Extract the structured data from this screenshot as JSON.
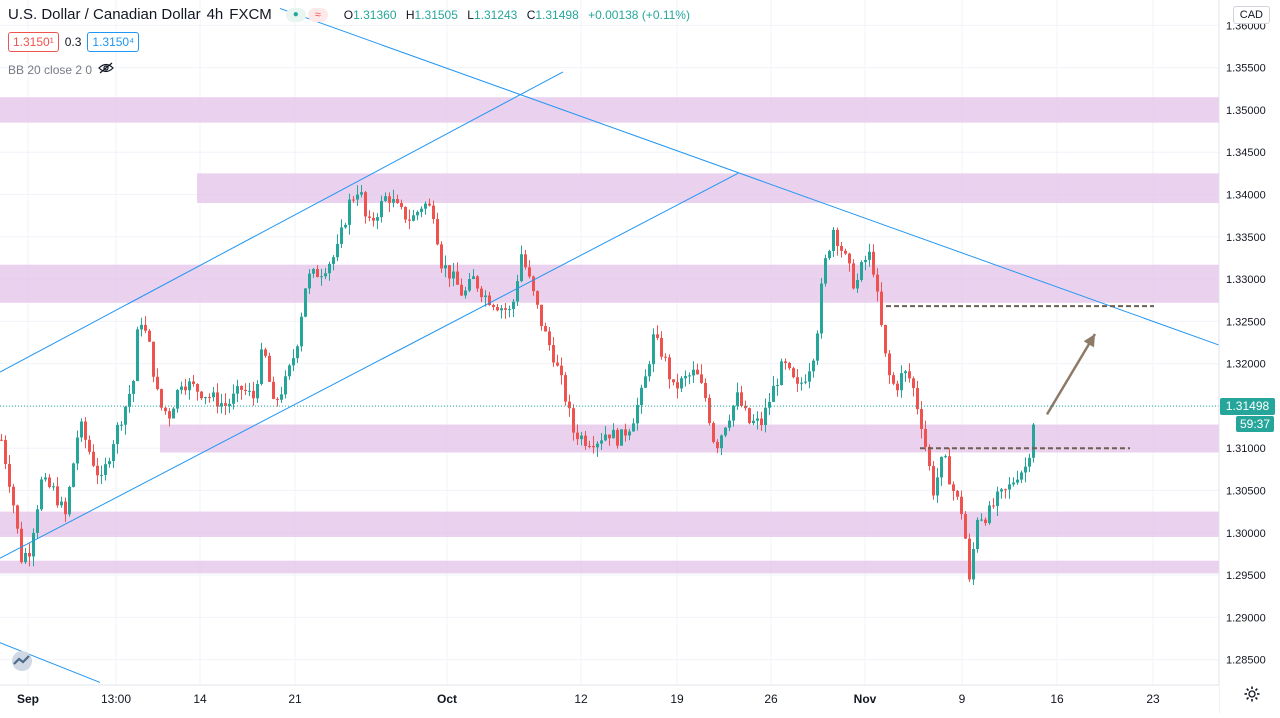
{
  "header": {
    "symbol": "U.S. Dollar / Canadian Dollar",
    "interval": "4h",
    "exchange": "FXCM",
    "ohlc": {
      "o_label": "O",
      "o": "1.31360",
      "h_label": "H",
      "h": "1.31505",
      "l_label": "L",
      "l": "1.31243",
      "c_label": "C",
      "c": "1.31498",
      "change": "+0.00138 (+0.11%)"
    },
    "sell_price": "1.3150¹",
    "spread": "0.3",
    "buy_price": "1.3150⁴",
    "indicator": "BB 20 close 2 0",
    "currency": "CAD"
  },
  "price_scale": {
    "labels": [
      "1.36000",
      "1.35500",
      "1.35000",
      "1.34500",
      "1.34000",
      "1.33500",
      "1.33000",
      "1.32500",
      "1.32000",
      "1.31500",
      "1.31000",
      "1.30500",
      "1.30000",
      "1.29500",
      "1.29000",
      "1.28500"
    ],
    "last_price": "1.31498",
    "countdown": "59:37"
  },
  "time_scale": {
    "labels": [
      "Sep",
      "13:00",
      "14",
      "21",
      "Oct",
      "12",
      "19",
      "26",
      "Nov",
      "9",
      "16",
      "23"
    ]
  },
  "colors": {
    "up": "#26a69a",
    "down": "#ef5350",
    "zone": "#e1bee7",
    "trendline": "#2196f3",
    "arrow": "#8d7b68"
  },
  "chart_data": {
    "type": "candlestick",
    "title": "U.S. Dollar / Canadian Dollar",
    "interval": "4h",
    "ylim": [
      1.282,
      1.363
    ],
    "zones": [
      {
        "low": 1.3485,
        "high": 1.3515
      },
      {
        "low": 1.339,
        "high": 1.3425
      },
      {
        "low": 1.3272,
        "high": 1.3317
      },
      {
        "low": 1.3095,
        "high": 1.3128
      },
      {
        "low": 1.2995,
        "high": 1.3025
      },
      {
        "low": 1.2952,
        "high": 1.2967
      }
    ],
    "path": [
      [
        0,
        1.311
      ],
      [
        10,
        1.305
      ],
      [
        20,
        1.297
      ],
      [
        28,
        1.298
      ],
      [
        40,
        1.306
      ],
      [
        52,
        1.305
      ],
      [
        64,
        1.302
      ],
      [
        78,
        1.313
      ],
      [
        90,
        1.309
      ],
      [
        100,
        1.306
      ],
      [
        112,
        1.311
      ],
      [
        124,
        1.315
      ],
      [
        132,
        1.318
      ],
      [
        138,
        1.326
      ],
      [
        148,
        1.322
      ],
      [
        158,
        1.315
      ],
      [
        168,
        1.314
      ],
      [
        180,
        1.318
      ],
      [
        195,
        1.317
      ],
      [
        210,
        1.316
      ],
      [
        225,
        1.315
      ],
      [
        240,
        1.317
      ],
      [
        252,
        1.316
      ],
      [
        262,
        1.322
      ],
      [
        272,
        1.315
      ],
      [
        285,
        1.318
      ],
      [
        295,
        1.322
      ],
      [
        305,
        1.33
      ],
      [
        320,
        1.331
      ],
      [
        335,
        1.333
      ],
      [
        348,
        1.339
      ],
      [
        358,
        1.341
      ],
      [
        366,
        1.336
      ],
      [
        376,
        1.338
      ],
      [
        386,
        1.34
      ],
      [
        398,
        1.338
      ],
      [
        410,
        1.337
      ],
      [
        422,
        1.339
      ],
      [
        432,
        1.338
      ],
      [
        440,
        1.332
      ],
      [
        452,
        1.33
      ],
      [
        462,
        1.328
      ],
      [
        472,
        1.33
      ],
      [
        484,
        1.328
      ],
      [
        496,
        1.327
      ],
      [
        510,
        1.326
      ],
      [
        520,
        1.333
      ],
      [
        530,
        1.329
      ],
      [
        542,
        1.324
      ],
      [
        552,
        1.321
      ],
      [
        562,
        1.317
      ],
      [
        572,
        1.312
      ],
      [
        584,
        1.311
      ],
      [
        596,
        1.311
      ],
      [
        606,
        1.312
      ],
      [
        618,
        1.311
      ],
      [
        630,
        1.313
      ],
      [
        642,
        1.317
      ],
      [
        652,
        1.323
      ],
      [
        662,
        1.321
      ],
      [
        672,
        1.317
      ],
      [
        682,
        1.318
      ],
      [
        694,
        1.319
      ],
      [
        704,
        1.316
      ],
      [
        714,
        1.31
      ],
      [
        724,
        1.313
      ],
      [
        736,
        1.316
      ],
      [
        748,
        1.313
      ],
      [
        760,
        1.313
      ],
      [
        772,
        1.317
      ],
      [
        782,
        1.32
      ],
      [
        796,
        1.317
      ],
      [
        806,
        1.319
      ],
      [
        814,
        1.322
      ],
      [
        822,
        1.331
      ],
      [
        832,
        1.336
      ],
      [
        842,
        1.333
      ],
      [
        854,
        1.329
      ],
      [
        862,
        1.332
      ],
      [
        870,
        1.333
      ],
      [
        878,
        1.326
      ],
      [
        886,
        1.319
      ],
      [
        894,
        1.317
      ],
      [
        902,
        1.319
      ],
      [
        910,
        1.318
      ],
      [
        920,
        1.313
      ],
      [
        932,
        1.305
      ],
      [
        942,
        1.309
      ],
      [
        952,
        1.305
      ],
      [
        962,
        1.302
      ],
      [
        968,
        1.294
      ],
      [
        976,
        1.302
      ],
      [
        986,
        1.302
      ],
      [
        996,
        1.304
      ],
      [
        1006,
        1.305
      ],
      [
        1016,
        1.307
      ],
      [
        1026,
        1.308
      ],
      [
        1034,
        1.315
      ]
    ],
    "trendlines": [
      {
        "x1": 0,
        "y1": 1.319,
        "x2": 563,
        "y2": 1.3545
      },
      {
        "x1": 0,
        "y1": 1.297,
        "x2": 738,
        "y2": 1.3425
      },
      {
        "x1": 280,
        "y1": 1.362,
        "x2": 1219,
        "y2": 1.3222
      },
      {
        "x1": 0,
        "y1": 1.287,
        "x2": 100,
        "y2": 1.2823
      }
    ],
    "dashed_levels": [
      {
        "x1": 886,
        "x2": 1154,
        "y": 1.3268
      },
      {
        "x1": 920,
        "x2": 1130,
        "y": 1.31
      }
    ],
    "arrow": {
      "x1": 1047,
      "y1": 1.314,
      "x2": 1095,
      "y2": 1.3235
    },
    "last_price": 1.31498
  }
}
